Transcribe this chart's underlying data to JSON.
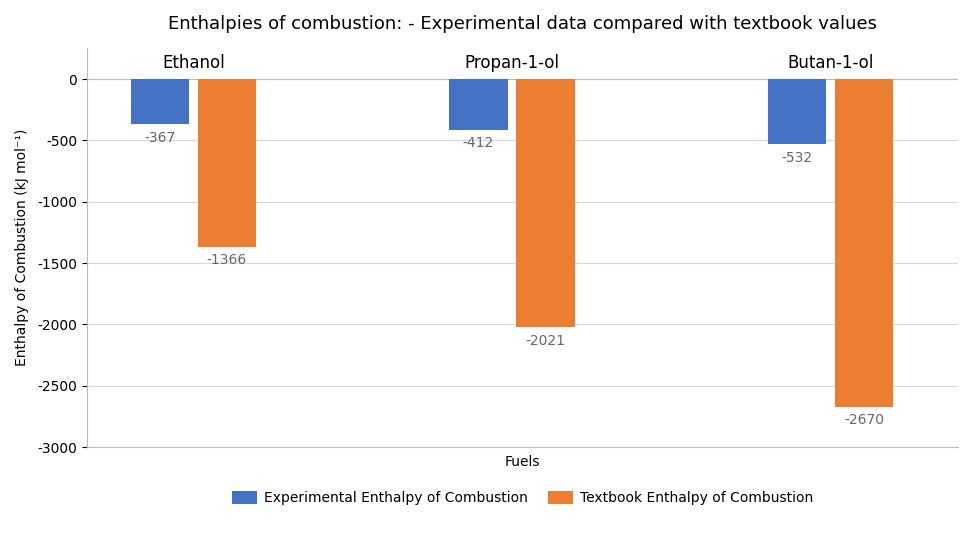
{
  "title": "Enthalpies of combustion: - Experimental data compared with textbook values",
  "xlabel": "Fuels",
  "ylabel": "Enthalpy of Combustion (kJ mol⁻¹)",
  "categories": [
    "Ethanol",
    "Propan-1-ol",
    "Butan-1-ol"
  ],
  "experimental": [
    -367,
    -412,
    -532
  ],
  "textbook": [
    -1366,
    -2021,
    -2670
  ],
  "ylim": [
    -3000,
    50
  ],
  "yticks": [
    0,
    -500,
    -1000,
    -1500,
    -2000,
    -2500,
    -3000
  ],
  "bar_color_exp": "#4472C4",
  "bar_color_txt": "#ED7D31",
  "background_color": "#FFFFFF",
  "grid_color": "#D9D9D9",
  "legend_labels": [
    "Experimental Enthalpy of Combustion",
    "Textbook Enthalpy of Combustion"
  ],
  "bar_width": 0.55,
  "title_fontsize": 13,
  "axis_label_fontsize": 10,
  "tick_fontsize": 10,
  "annotation_fontsize": 10,
  "category_label_fontsize": 12
}
